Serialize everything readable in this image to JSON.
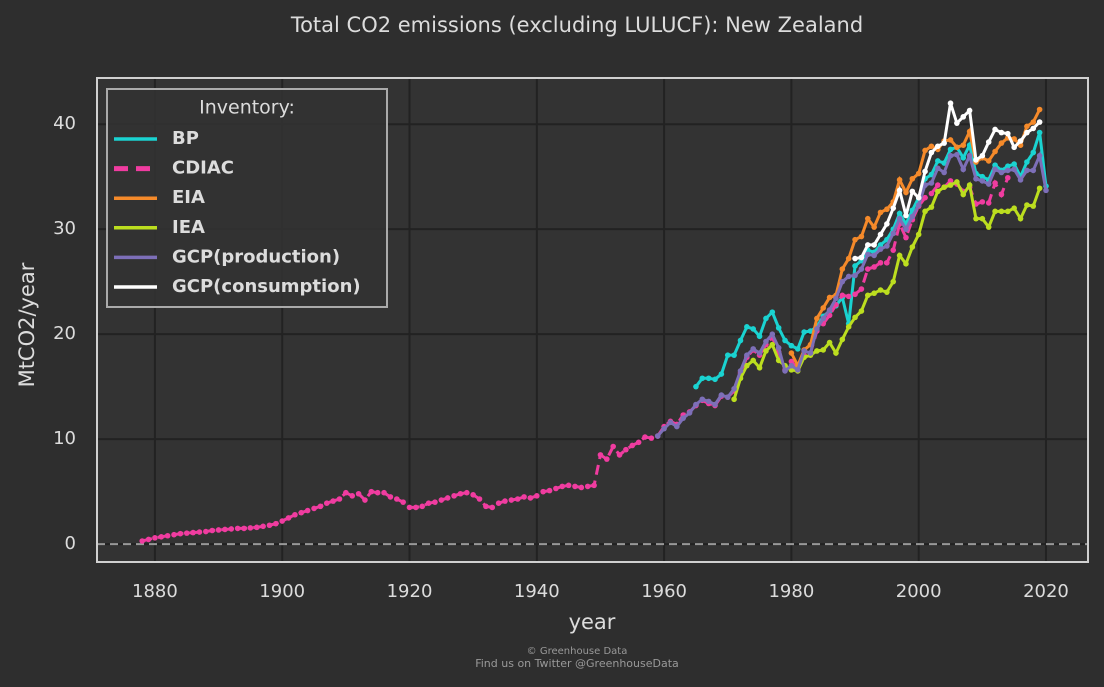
{
  "chart_data": {
    "type": "line",
    "title": "Total CO2 emissions (excluding LULUCF): New Zealand",
    "x_label": "year",
    "y_label": "MtCO2/year",
    "legend_title": "Inventory:",
    "legend": "upper left",
    "grid": true,
    "zero_line": true,
    "credits": [
      "© Greenhouse Data",
      "Find us on Twitter @GreenhouseData"
    ],
    "xlim": [
      1870.9,
      2026.6
    ],
    "ylim": [
      -1.7,
      44.4
    ],
    "xticks": [
      1880,
      1900,
      1920,
      1940,
      1960,
      1980,
      2000,
      2020
    ],
    "yticks": [
      0,
      10,
      20,
      30,
      40
    ],
    "series": [
      {
        "name": "BP",
        "color": "#1ad3d1",
        "dash": false,
        "x": [
          1965,
          1966,
          1967,
          1968,
          1969,
          1970,
          1971,
          1972,
          1973,
          1974,
          1975,
          1976,
          1977,
          1978,
          1979,
          1980,
          1981,
          1982,
          1983,
          1984,
          1985,
          1986,
          1987,
          1988,
          1989,
          1990,
          1991,
          1992,
          1993,
          1994,
          1995,
          1996,
          1997,
          1998,
          1999,
          2000,
          2001,
          2002,
          2003,
          2004,
          2005,
          2006,
          2007,
          2008,
          2009,
          2010,
          2011,
          2012,
          2013,
          2014,
          2015,
          2016,
          2017,
          2018,
          2019,
          2020
        ],
        "values": [
          15.0,
          15.8,
          15.8,
          15.7,
          16.2,
          18.0,
          18.0,
          19.4,
          20.7,
          20.5,
          19.8,
          21.5,
          22.1,
          20.6,
          19.4,
          18.9,
          18.6,
          20.2,
          20.3,
          20.7,
          21.7,
          22.2,
          22.7,
          23.5,
          21.0,
          26.5,
          27.0,
          28.0,
          27.8,
          28.5,
          29.0,
          30.0,
          31.5,
          30.5,
          31.8,
          33.0,
          34.8,
          35.2,
          36.5,
          36.3,
          37.6,
          37.8,
          36.8,
          38.0,
          35.3,
          35.0,
          34.7,
          36.1,
          35.6,
          36.0,
          36.2,
          35.0,
          36.4,
          37.3,
          39.2,
          34.1
        ]
      },
      {
        "name": "CDIAC",
        "color": "#f03ca0",
        "dash": true,
        "x": [
          1878,
          1879,
          1880,
          1881,
          1882,
          1883,
          1884,
          1885,
          1886,
          1887,
          1888,
          1889,
          1890,
          1891,
          1892,
          1893,
          1894,
          1895,
          1896,
          1897,
          1898,
          1899,
          1900,
          1901,
          1902,
          1903,
          1904,
          1905,
          1906,
          1907,
          1908,
          1909,
          1910,
          1911,
          1912,
          1913,
          1914,
          1915,
          1916,
          1917,
          1918,
          1919,
          1920,
          1921,
          1922,
          1923,
          1924,
          1925,
          1926,
          1927,
          1928,
          1929,
          1930,
          1931,
          1932,
          1933,
          1934,
          1935,
          1936,
          1937,
          1938,
          1939,
          1940,
          1941,
          1942,
          1943,
          1944,
          1945,
          1946,
          1947,
          1948,
          1949,
          1950,
          1951,
          1952,
          1953,
          1954,
          1955,
          1956,
          1957,
          1958,
          1959,
          1960,
          1961,
          1962,
          1963,
          1964,
          1965,
          1966,
          1967,
          1968,
          1969,
          1970,
          1971,
          1972,
          1973,
          1974,
          1975,
          1976,
          1977,
          1978,
          1979,
          1980,
          1981,
          1982,
          1983,
          1984,
          1985,
          1986,
          1987,
          1988,
          1989,
          1990,
          1991,
          1992,
          1993,
          1994,
          1995,
          1996,
          1997,
          1998,
          1999,
          2000,
          2001,
          2002,
          2003,
          2004,
          2005,
          2006,
          2007,
          2008,
          2009,
          2010,
          2011,
          2012,
          2013,
          2014
        ],
        "values": [
          0.3,
          0.45,
          0.6,
          0.7,
          0.8,
          0.9,
          1.0,
          1.05,
          1.1,
          1.15,
          1.2,
          1.3,
          1.35,
          1.4,
          1.45,
          1.5,
          1.5,
          1.55,
          1.6,
          1.7,
          1.8,
          1.95,
          2.2,
          2.5,
          2.8,
          3.0,
          3.2,
          3.4,
          3.6,
          3.9,
          4.1,
          4.3,
          4.9,
          4.6,
          4.8,
          4.2,
          5.0,
          4.9,
          4.9,
          4.5,
          4.3,
          4.0,
          3.5,
          3.5,
          3.6,
          3.9,
          4.0,
          4.2,
          4.4,
          4.6,
          4.8,
          4.9,
          4.7,
          4.3,
          3.6,
          3.5,
          3.9,
          4.1,
          4.2,
          4.3,
          4.5,
          4.4,
          4.6,
          5.0,
          5.1,
          5.3,
          5.5,
          5.6,
          5.5,
          5.4,
          5.5,
          5.6,
          8.5,
          8.1,
          9.3,
          8.5,
          9.0,
          9.4,
          9.7,
          10.2,
          10.1,
          10.3,
          11.2,
          11.7,
          11.4,
          12.3,
          12.6,
          13.2,
          13.7,
          13.4,
          13.2,
          14.1,
          14.0,
          14.6,
          16.3,
          17.8,
          18.5,
          18.0,
          19.0,
          19.7,
          18.3,
          16.6,
          17.4,
          16.7,
          18.0,
          18.2,
          20.3,
          21.0,
          21.8,
          22.8,
          23.7,
          23.6,
          23.8,
          24.3,
          26.2,
          26.4,
          26.8,
          26.8,
          28.0,
          30.5,
          29.2,
          30.9,
          32.2,
          33.0,
          33.4,
          34.2,
          34.0,
          34.6,
          34.3,
          33.6,
          34.0,
          32.4,
          32.6,
          32.5,
          34.4,
          33.3,
          34.9
        ]
      },
      {
        "name": "EIA",
        "color": "#f58a2a",
        "dash": false,
        "x": [
          1980,
          1981,
          1982,
          1983,
          1984,
          1985,
          1986,
          1987,
          1988,
          1989,
          1990,
          1991,
          1992,
          1993,
          1994,
          1995,
          1996,
          1997,
          1998,
          1999,
          2000,
          2001,
          2002,
          2003,
          2004,
          2005,
          2006,
          2007,
          2008,
          2009,
          2010,
          2011,
          2012,
          2013,
          2014,
          2015,
          2016,
          2017,
          2018,
          2019
        ],
        "values": [
          18.2,
          17.0,
          18.5,
          19.0,
          21.5,
          22.5,
          23.5,
          23.7,
          26.2,
          27.2,
          29.0,
          29.3,
          31.0,
          30.2,
          31.6,
          31.9,
          32.6,
          34.7,
          33.5,
          34.8,
          35.3,
          37.5,
          37.9,
          37.6,
          38.4,
          38.5,
          37.8,
          38.0,
          39.3,
          36.4,
          36.8,
          36.5,
          37.4,
          38.2,
          38.7,
          38.6,
          38.0,
          39.8,
          40.2,
          41.4
        ]
      },
      {
        "name": "IEA",
        "color": "#bcde1f",
        "dash": false,
        "x": [
          1971,
          1972,
          1973,
          1974,
          1975,
          1976,
          1977,
          1978,
          1979,
          1980,
          1981,
          1982,
          1983,
          1984,
          1985,
          1986,
          1987,
          1988,
          1989,
          1990,
          1991,
          1992,
          1993,
          1994,
          1995,
          1996,
          1997,
          1998,
          1999,
          2000,
          2001,
          2002,
          2003,
          2004,
          2005,
          2006,
          2007,
          2008,
          2009,
          2010,
          2011,
          2012,
          2013,
          2014,
          2015,
          2016,
          2017,
          2018,
          2019
        ],
        "values": [
          13.8,
          15.8,
          17.0,
          17.5,
          16.8,
          18.4,
          19.0,
          17.5,
          17.0,
          16.6,
          16.5,
          17.8,
          18.0,
          18.4,
          18.5,
          19.2,
          18.2,
          19.5,
          20.7,
          21.6,
          22.2,
          23.7,
          23.9,
          24.2,
          24.0,
          25.0,
          27.5,
          26.7,
          28.3,
          29.5,
          31.7,
          32.1,
          33.6,
          34.0,
          34.2,
          34.5,
          33.3,
          34.2,
          31.0,
          31.0,
          30.2,
          31.7,
          31.7,
          31.7,
          32.0,
          31.0,
          32.3,
          32.2,
          33.9
        ]
      },
      {
        "name": "GCP(production)",
        "color": "#7d6fb8",
        "dash": false,
        "x": [
          1959,
          1960,
          1961,
          1962,
          1963,
          1964,
          1965,
          1966,
          1967,
          1968,
          1969,
          1970,
          1971,
          1972,
          1973,
          1974,
          1975,
          1976,
          1977,
          1978,
          1979,
          1980,
          1981,
          1982,
          1983,
          1984,
          1985,
          1986,
          1987,
          1988,
          1989,
          1990,
          1991,
          1992,
          1993,
          1994,
          1995,
          1996,
          1997,
          1998,
          1999,
          2000,
          2001,
          2002,
          2003,
          2004,
          2005,
          2006,
          2007,
          2008,
          2009,
          2010,
          2011,
          2012,
          2013,
          2014,
          2015,
          2016,
          2017,
          2018,
          2019,
          2020
        ],
        "values": [
          10.3,
          11.0,
          11.6,
          11.2,
          12.0,
          12.5,
          13.3,
          13.8,
          13.6,
          13.3,
          14.2,
          14.0,
          14.8,
          16.5,
          18.0,
          18.6,
          18.2,
          19.3,
          20.0,
          18.7,
          16.5,
          17.0,
          16.6,
          18.4,
          18.2,
          20.5,
          21.5,
          22.3,
          23.4,
          25.0,
          25.5,
          25.6,
          26.2,
          27.6,
          27.5,
          28.1,
          28.4,
          29.6,
          31.0,
          30.0,
          31.2,
          32.3,
          34.2,
          34.4,
          35.8,
          35.4,
          37.0,
          37.1,
          35.7,
          37.0,
          34.8,
          34.6,
          34.3,
          35.7,
          35.4,
          35.6,
          35.7,
          34.7,
          35.6,
          35.6,
          37.0,
          33.7
        ]
      },
      {
        "name": "GCP(consumption)",
        "color": "#ffffff",
        "dash": false,
        "x": [
          1990,
          1991,
          1992,
          1993,
          1994,
          1995,
          1996,
          1997,
          1998,
          1999,
          2000,
          2001,
          2002,
          2003,
          2004,
          2005,
          2006,
          2007,
          2008,
          2009,
          2010,
          2011,
          2012,
          2013,
          2014,
          2015,
          2016,
          2017,
          2018,
          2019
        ],
        "values": [
          27.2,
          27.3,
          28.5,
          28.5,
          29.5,
          30.5,
          32.0,
          33.7,
          31.3,
          33.6,
          33.0,
          35.5,
          37.3,
          37.9,
          38.2,
          42.0,
          40.1,
          40.7,
          41.3,
          36.6,
          37.0,
          38.3,
          39.5,
          39.2,
          39.1,
          37.8,
          38.4,
          39.2,
          39.6,
          40.2
        ]
      }
    ]
  }
}
